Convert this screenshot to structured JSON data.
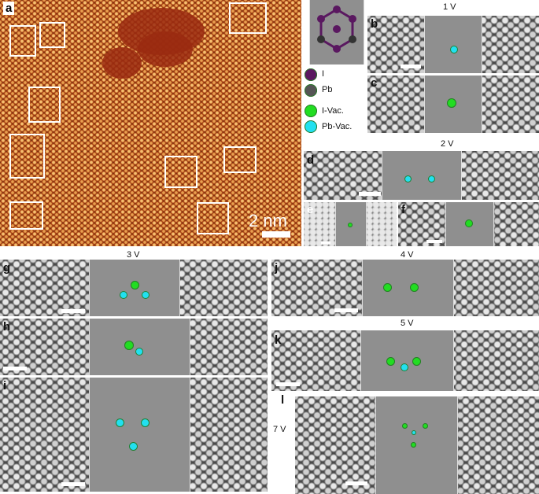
{
  "panels": {
    "a": "a",
    "b": "b",
    "c": "c",
    "d": "d",
    "e": "e",
    "f": "f",
    "g": "g",
    "h": "h",
    "i": "i",
    "j": "j",
    "k": "k",
    "l": "l"
  },
  "scale_label": "2 nm",
  "voltages": {
    "v1": "1 V",
    "v2": "2 V",
    "v3": "3 V",
    "v4": "4 V",
    "v5": "5 V",
    "v7": "7 V"
  },
  "legend": {
    "iodine": "I",
    "lead": "Pb",
    "i_vac": "I-Vac.",
    "pb_vac": "Pb-Vac."
  },
  "colors": {
    "iodine": "#5a1860",
    "lead": "#555555",
    "i_vac": "#22dd22",
    "pb_vac": "#22e0f0"
  }
}
